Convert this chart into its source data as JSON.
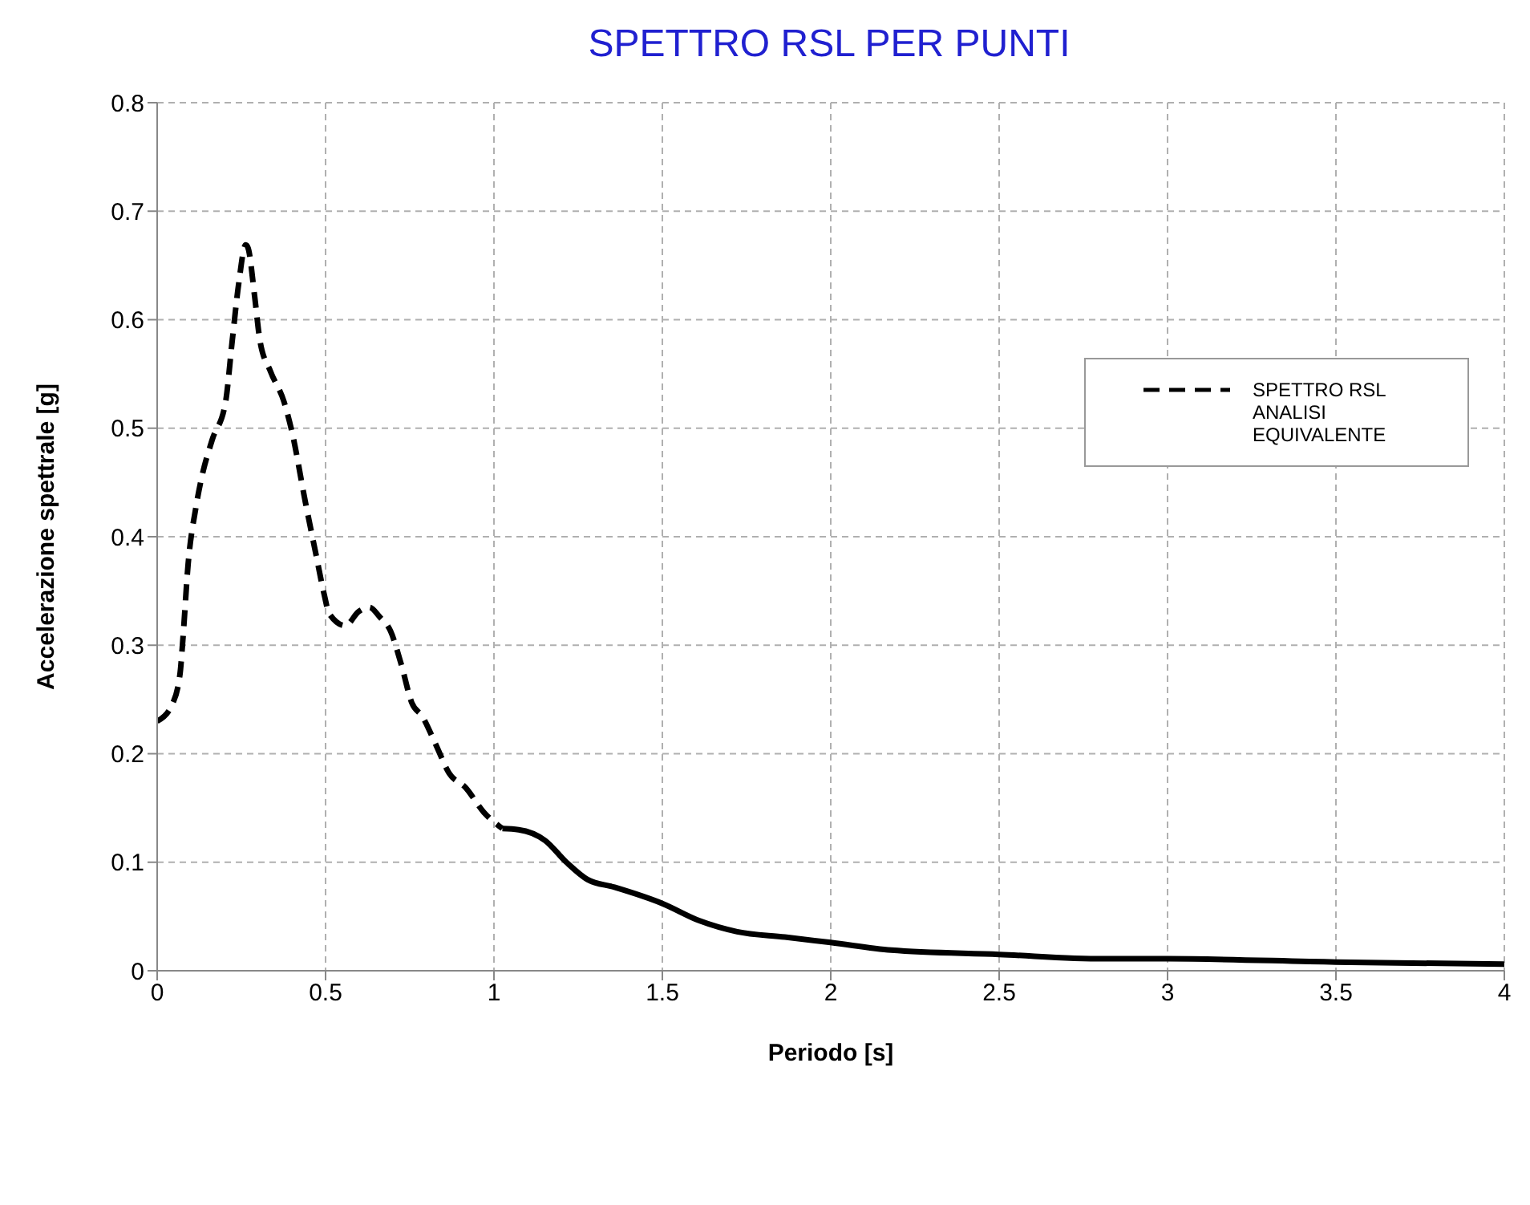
{
  "chart_data": {
    "type": "line",
    "title": "SPETTRO RSL PER PUNTI",
    "xlabel": "Periodo [s]",
    "ylabel": "Accelerazione spettrale [g]",
    "xlim": [
      0,
      4
    ],
    "xticks": [
      0,
      0.5,
      1,
      1.5,
      2,
      2.5,
      3,
      3.5,
      4
    ],
    "ylim": [
      0,
      0.8
    ],
    "yticks": [
      0,
      0.1,
      0.2,
      0.3,
      0.4,
      0.5,
      0.6,
      0.7,
      0.8
    ],
    "grid": true,
    "legend": "top right",
    "marker": "none",
    "series": [
      {
        "name": "SPETTRO RSL ANALISI EQUIVALENTE",
        "color": "#000000",
        "line_style": "dashed",
        "x": [
          0,
          0.044,
          0.068,
          0.076,
          0.092,
          0.115,
          0.131,
          0.163,
          0.203,
          0.223,
          0.242,
          0.263,
          0.27,
          0.29,
          0.305,
          0.337,
          0.377,
          0.4,
          0.44,
          0.472,
          0.495,
          0.511,
          0.559,
          0.598,
          0.63,
          0.661,
          0.693,
          0.725,
          0.756,
          0.788,
          0.828,
          0.867,
          0.915,
          0.97,
          1.025
        ],
        "values": [
          0.23,
          0.245,
          0.274,
          0.304,
          0.375,
          0.427,
          0.453,
          0.489,
          0.524,
          0.581,
          0.633,
          0.669,
          0.666,
          0.62,
          0.581,
          0.552,
          0.524,
          0.497,
          0.432,
          0.383,
          0.348,
          0.329,
          0.318,
          0.331,
          0.335,
          0.326,
          0.313,
          0.282,
          0.247,
          0.234,
          0.208,
          0.182,
          0.169,
          0.146,
          0.131
        ]
      },
      {
        "color": "#000000",
        "line_style": "solid",
        "x": [
          1.025,
          1.073,
          1.152,
          1.215,
          1.278,
          1.358,
          1.5,
          1.611,
          1.722,
          1.864,
          2.0,
          2.18,
          2.5,
          2.81,
          3.0,
          3.5,
          4.0
        ],
        "values": [
          0.131,
          0.13,
          0.12,
          0.1,
          0.084,
          0.077,
          0.062,
          0.046,
          0.036,
          0.031,
          0.026,
          0.019,
          0.015,
          0.011,
          0.011,
          0.008,
          0.006
        ]
      }
    ]
  }
}
